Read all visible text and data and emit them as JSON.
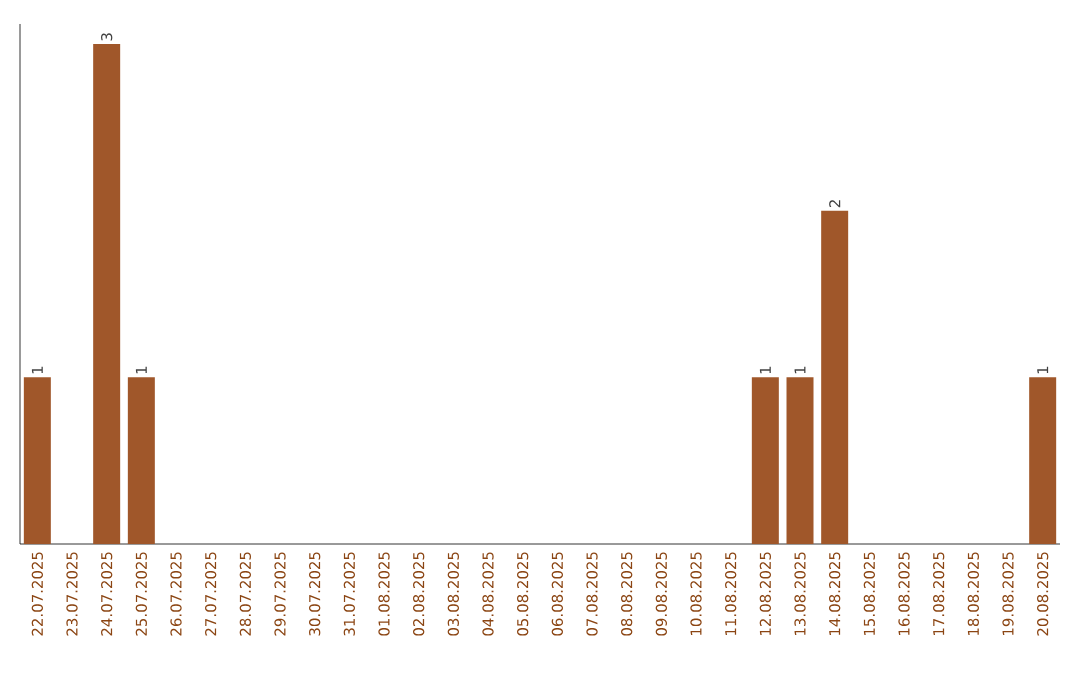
{
  "chart_data": {
    "type": "bar",
    "categories": [
      "22.07.2025",
      "23.07.2025",
      "24.07.2025",
      "25.07.2025",
      "26.07.2025",
      "27.07.2025",
      "28.07.2025",
      "29.07.2025",
      "30.07.2025",
      "31.07.2025",
      "01.08.2025",
      "02.08.2025",
      "03.08.2025",
      "04.08.2025",
      "05.08.2025",
      "06.08.2025",
      "07.08.2025",
      "08.08.2025",
      "09.08.2025",
      "10.08.2025",
      "11.08.2025",
      "12.08.2025",
      "13.08.2025",
      "14.08.2025",
      "15.08.2025",
      "16.08.2025",
      "17.08.2025",
      "18.08.2025",
      "19.08.2025",
      "20.08.2025"
    ],
    "values": [
      1,
      0,
      3,
      1,
      0,
      0,
      0,
      0,
      0,
      0,
      0,
      0,
      0,
      0,
      0,
      0,
      0,
      0,
      0,
      0,
      0,
      1,
      1,
      2,
      0,
      0,
      0,
      0,
      0,
      1
    ],
    "value_labels": [
      "1",
      null,
      "3",
      "1",
      null,
      null,
      null,
      null,
      null,
      null,
      null,
      null,
      null,
      null,
      null,
      null,
      null,
      null,
      null,
      null,
      null,
      "1",
      "1",
      "2",
      null,
      null,
      null,
      null,
      null,
      "1"
    ],
    "color": "#a0572a",
    "tick_labels": "x",
    "grid": false
  }
}
